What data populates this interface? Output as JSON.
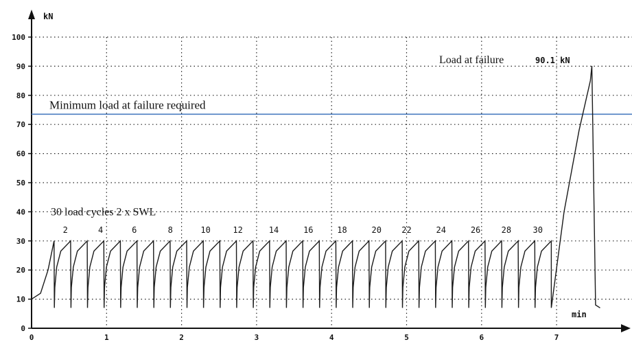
{
  "chart_data": {
    "type": "line",
    "title": "",
    "xlabel": "",
    "ylabel": "",
    "x_unit": "min",
    "y_unit": "kN",
    "xlim": [
      0,
      8
    ],
    "ylim": [
      0,
      100
    ],
    "x_ticks": [
      0,
      1,
      2,
      3,
      4,
      5,
      6,
      7
    ],
    "y_ticks": [
      0,
      10,
      20,
      30,
      40,
      50,
      60,
      70,
      80,
      90,
      100
    ],
    "grid": true,
    "reference_line": {
      "label": "Minimum load at failure required",
      "value": 73.5,
      "color": "#4a7cc0"
    },
    "annotations": {
      "cycles_label": "30 load cycles   2 x SWL",
      "failure_label": "Load at failure",
      "failure_value": "90.1 kN"
    },
    "cycle_labels": [
      "2",
      "4",
      "6",
      "8",
      "10",
      "12",
      "14",
      "16",
      "18",
      "20",
      "22",
      "24",
      "26",
      "28",
      "30"
    ],
    "cycle_label_x": [
      0.45,
      0.92,
      1.37,
      1.85,
      2.32,
      2.75,
      3.23,
      3.69,
      4.14,
      4.6,
      5.0,
      5.46,
      5.92,
      6.33,
      6.75
    ],
    "series": [
      {
        "type": "cycles",
        "start": [
          0,
          10
        ],
        "first_peak": [
          0.3,
          30
        ],
        "cycle_count": 30,
        "cycle_end_time": 6.93,
        "min_load": 7,
        "max_load": 30
      },
      {
        "type": "failure_ramp",
        "x": [
          6.93,
          7.1,
          7.3,
          7.45,
          7.47,
          7.52,
          7.58
        ],
        "y": [
          7,
          40,
          68,
          85,
          90.1,
          8,
          7
        ]
      }
    ]
  }
}
